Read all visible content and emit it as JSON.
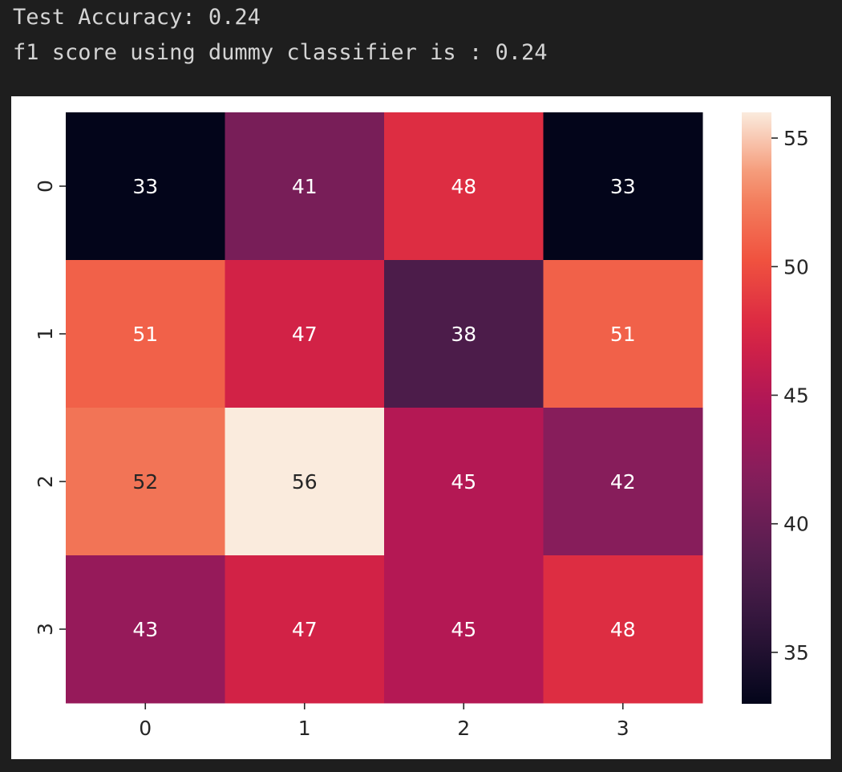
{
  "output": {
    "lines": [
      "Test Accuracy: 0.24",
      "f1 score using dummy classifier is : 0.24"
    ]
  },
  "chart_data": {
    "type": "heatmap",
    "x_categories": [
      "0",
      "1",
      "2",
      "3"
    ],
    "y_categories": [
      "0",
      "1",
      "2",
      "3"
    ],
    "values": [
      [
        33,
        41,
        48,
        33
      ],
      [
        51,
        47,
        38,
        51
      ],
      [
        52,
        56,
        45,
        42
      ],
      [
        43,
        47,
        45,
        48
      ]
    ],
    "annotations": true,
    "colormap": "rocket",
    "vmin": 33,
    "vmax": 56,
    "colorbar": {
      "ticks": [
        35,
        40,
        45,
        50,
        55
      ]
    },
    "title": "",
    "xlabel": "",
    "ylabel": ""
  }
}
